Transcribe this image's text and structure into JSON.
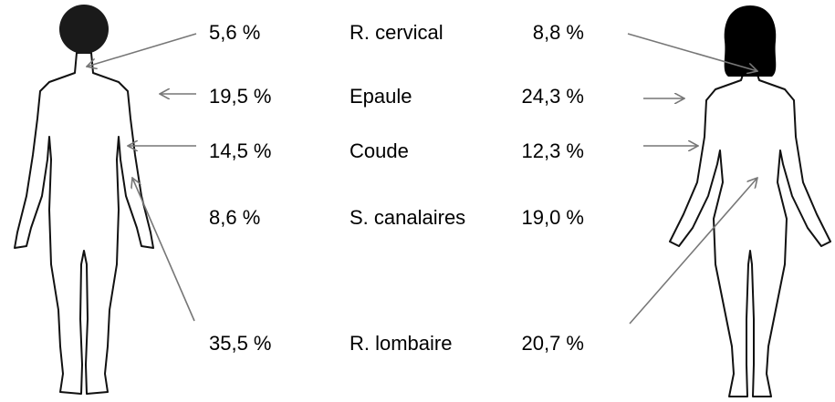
{
  "rows": [
    {
      "male": "5,6  %",
      "region": "R. cervical",
      "female": "8,8  %"
    },
    {
      "male": "19,5  %",
      "region": "Epaule",
      "female": "24,3 %"
    },
    {
      "male": "14,5  %",
      "region": "Coude",
      "female": "12,3 %"
    },
    {
      "male": "8,6 %",
      "region": "S. canalaires",
      "female": "19,0 %"
    },
    {
      "male": "35,5  %",
      "region": "R. lombaire",
      "female": "20,7 %"
    }
  ]
}
